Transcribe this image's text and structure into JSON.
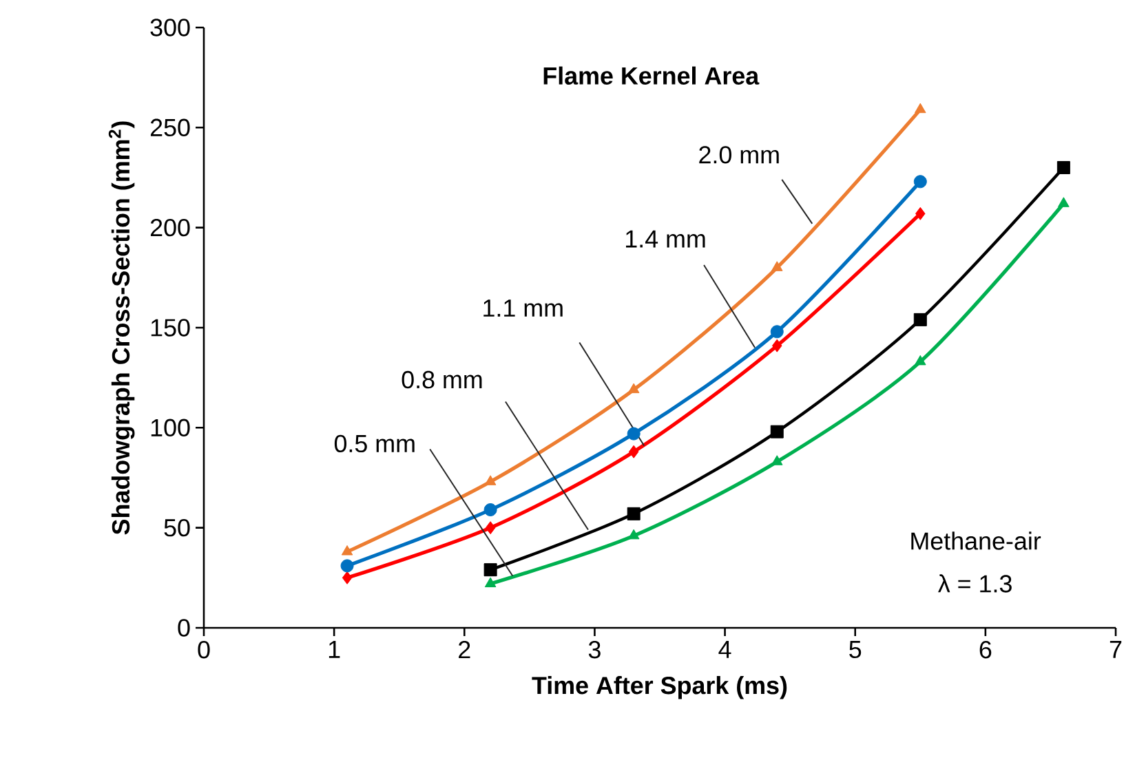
{
  "chart_data": {
    "type": "line",
    "title": "Flame Kernel Area",
    "xlabel": "Time After Spark (ms)",
    "ylabel": "Shadowgraph Cross-Section (mm$^{2}$)",
    "xlim": [
      0,
      7
    ],
    "xticks": [
      0,
      1,
      2,
      3,
      4,
      5,
      6,
      7
    ],
    "ylim": [
      0,
      300
    ],
    "yticks": [
      0,
      50,
      100,
      150,
      200,
      250,
      300
    ],
    "grid": false,
    "line_style": "solid",
    "annotations": [
      {
        "text": "0.5 mm",
        "x": 2.37,
        "y": 26
      },
      {
        "text": "0.8 mm",
        "x": 2.95,
        "y": 49
      },
      {
        "text": "1.1 mm",
        "x": 3.38,
        "y": 91
      },
      {
        "text": "1.4 mm",
        "x": 4.23,
        "y": 140
      },
      {
        "text": "2.0 mm",
        "x": 4.67,
        "y": 202
      },
      "Methane-air",
      "λ = 1.3"
    ],
    "series": [
      {
        "color": "#00b050",
        "marker": "triangle",
        "x": [
          2.2,
          3.3,
          4.4,
          5.5,
          6.6
        ],
        "values": [
          22,
          46,
          83,
          133,
          212
        ]
      },
      {
        "color": "#000000",
        "marker": "square",
        "x": [
          2.2,
          3.3,
          4.4,
          5.5,
          6.6
        ],
        "values": [
          29,
          57,
          98,
          154,
          230
        ]
      },
      {
        "color": "#ff0000",
        "marker": "diamond",
        "x": [
          1.1,
          2.2,
          3.3,
          4.4,
          5.5
        ],
        "values": [
          25,
          50,
          88,
          141,
          207
        ]
      },
      {
        "color": "#0070c0",
        "marker": "circle",
        "x": [
          1.1,
          2.2,
          3.3,
          4.4,
          5.5
        ],
        "values": [
          31,
          59,
          97,
          148,
          223
        ]
      },
      {
        "color": "#ed7d31",
        "marker": "triangle",
        "x": [
          1.1,
          2.2,
          3.3,
          4.4,
          5.5
        ],
        "values": [
          38,
          73,
          119,
          180,
          259
        ]
      }
    ]
  }
}
